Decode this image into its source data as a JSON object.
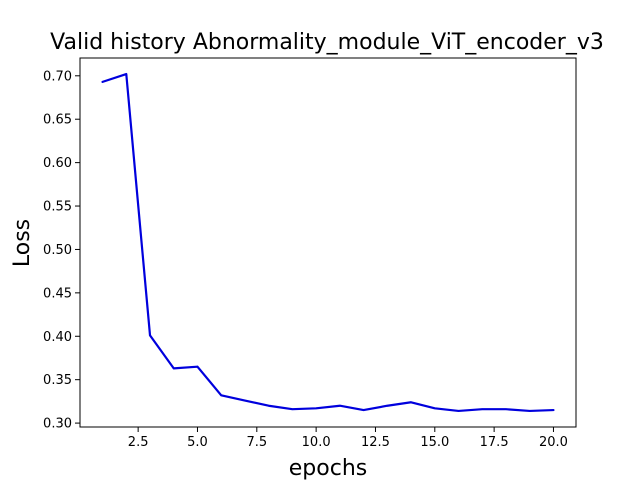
{
  "chart_data": {
    "type": "line",
    "title": "Valid history Abnormality_module_ViT_encoder_v3",
    "xlabel": "epochs",
    "ylabel": "Loss",
    "xlim": [
      0.05,
      20.95
    ],
    "ylim": [
      0.2955,
      0.7205
    ],
    "xticks": [
      2.5,
      5.0,
      7.5,
      10.0,
      12.5,
      15.0,
      17.5,
      20.0
    ],
    "xtick_labels": [
      "2.5",
      "5.0",
      "7.5",
      "10.0",
      "12.5",
      "15.0",
      "17.5",
      "20.0"
    ],
    "yticks": [
      0.3,
      0.35,
      0.4,
      0.45,
      0.5,
      0.55,
      0.6,
      0.65,
      0.7
    ],
    "ytick_labels": [
      "0.30",
      "0.35",
      "0.40",
      "0.45",
      "0.50",
      "0.55",
      "0.60",
      "0.65",
      "0.70"
    ],
    "grid": false,
    "series": [
      {
        "color": "#0000dd",
        "x": [
          1,
          2,
          3,
          4,
          5,
          6,
          7,
          8,
          9,
          10,
          11,
          12,
          13,
          14,
          15,
          16,
          17,
          18,
          19,
          20
        ],
        "y": [
          0.693,
          0.702,
          0.401,
          0.363,
          0.365,
          0.332,
          0.326,
          0.32,
          0.316,
          0.317,
          0.32,
          0.315,
          0.32,
          0.324,
          0.317,
          0.314,
          0.316,
          0.316,
          0.314,
          0.315
        ]
      }
    ]
  }
}
